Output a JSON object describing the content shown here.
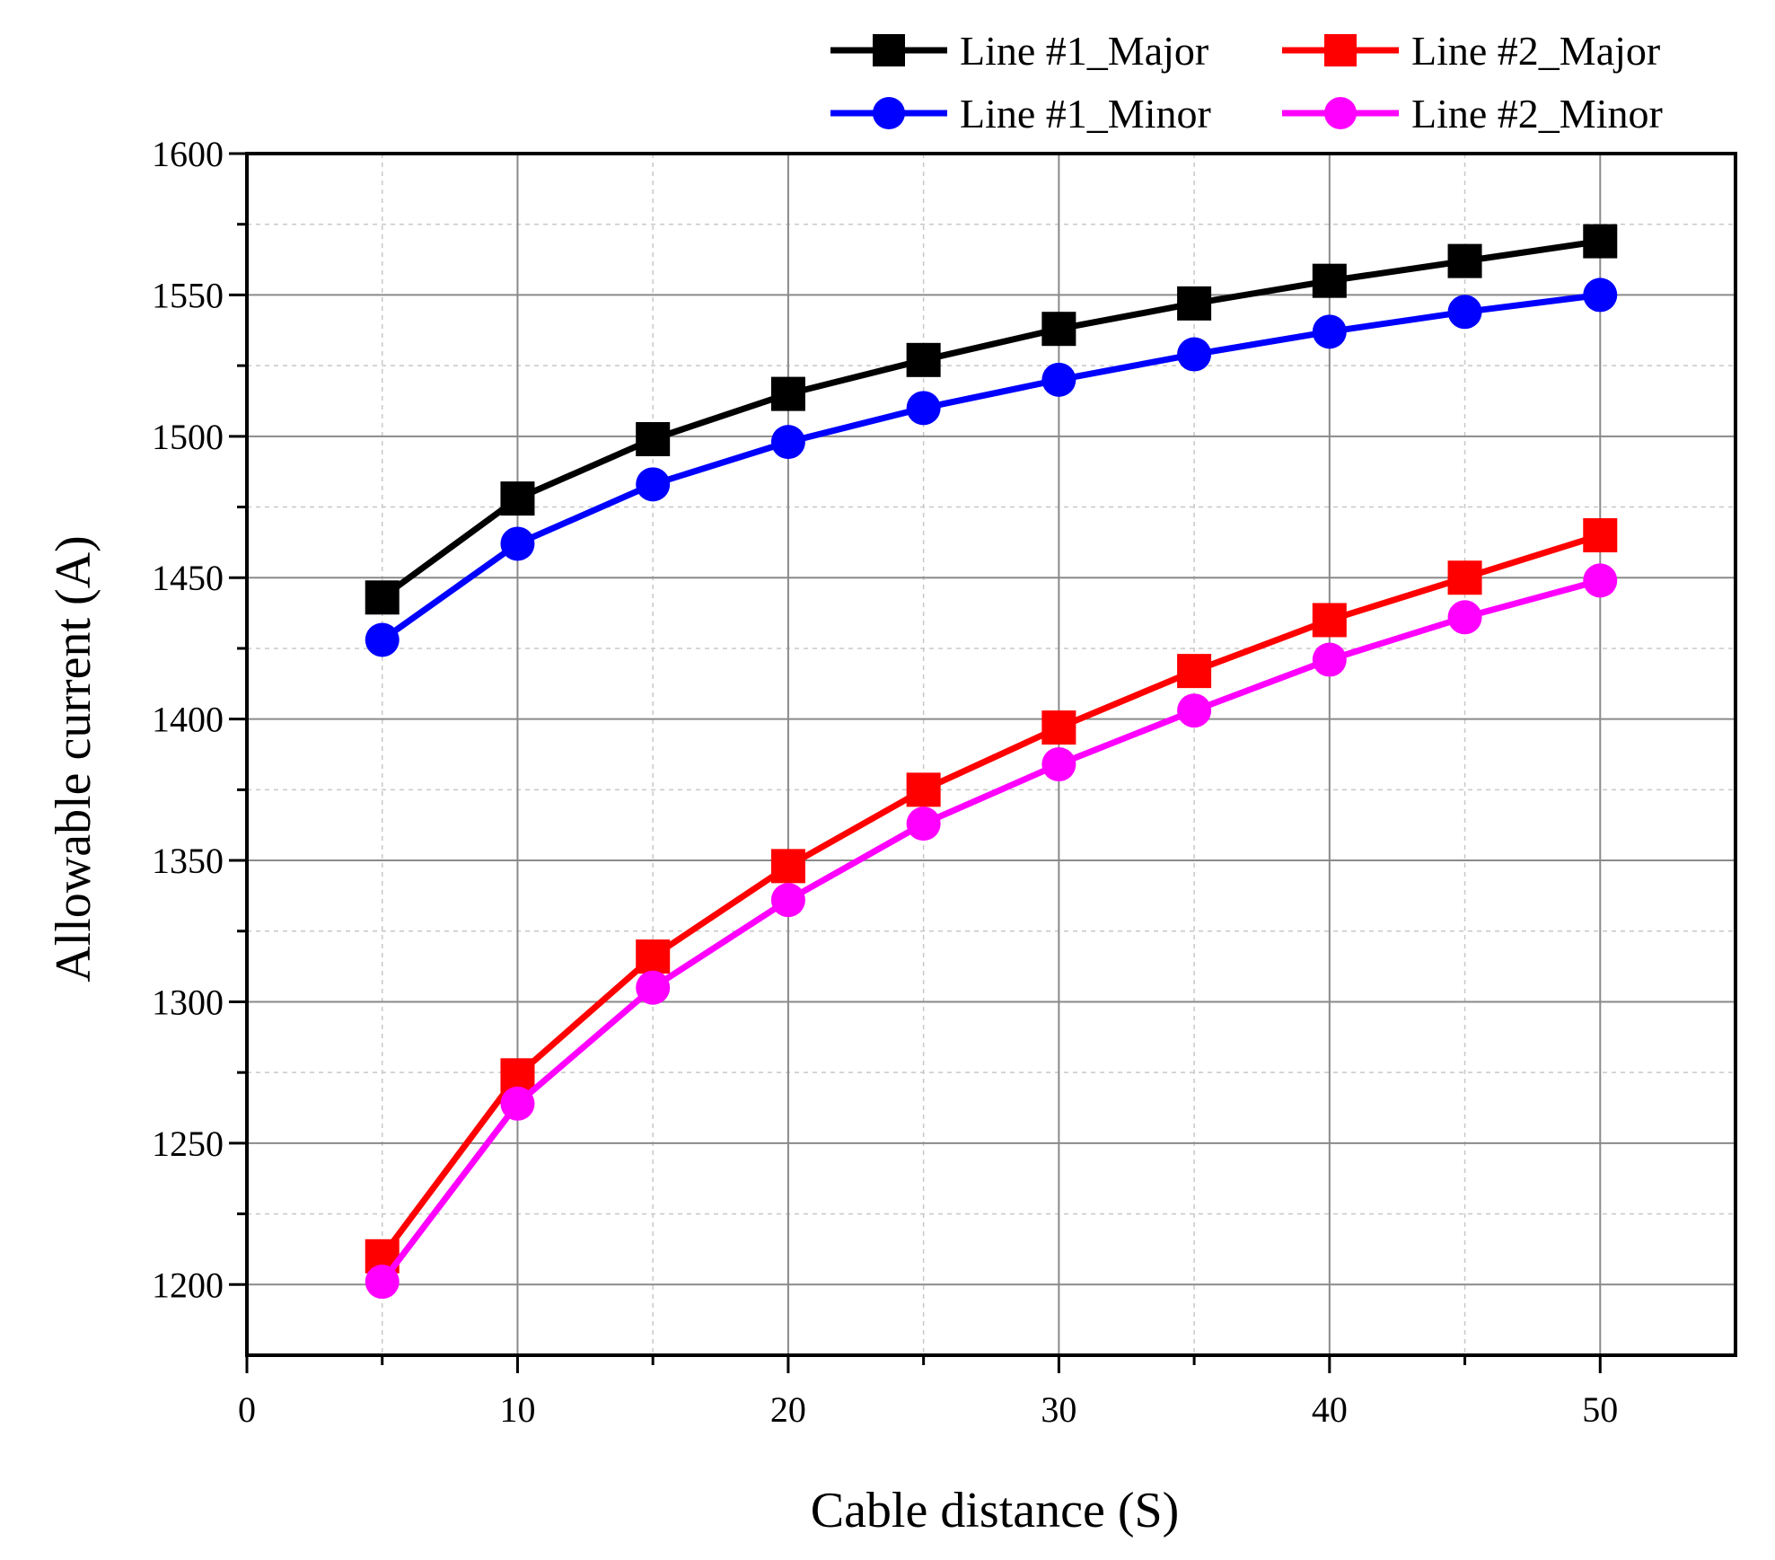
{
  "chart_data": {
    "type": "line",
    "title": "",
    "xlabel": "Cable distance (S)",
    "ylabel": "Allowable current (A)",
    "xlim": [
      0,
      55
    ],
    "ylim": [
      1175,
      1600
    ],
    "xticks": [
      0,
      10,
      20,
      30,
      40,
      50
    ],
    "yticks": [
      1200,
      1250,
      1300,
      1350,
      1400,
      1450,
      1500,
      1550,
      1600
    ],
    "grid": true,
    "legend_position": "top-right",
    "x": [
      5,
      10,
      15,
      20,
      25,
      30,
      35,
      40,
      45,
      50
    ],
    "series": [
      {
        "name": "Line #1_Major",
        "color": "#000000",
        "marker": "square",
        "values": [
          1443,
          1478,
          1499,
          1515,
          1527,
          1538,
          1547,
          1555,
          1562,
          1569
        ]
      },
      {
        "name": "Line #2_Major",
        "color": "#ff0000",
        "marker": "square",
        "values": [
          1210,
          1274,
          1316,
          1348,
          1375,
          1397,
          1417,
          1435,
          1450,
          1465
        ]
      },
      {
        "name": "Line #1_Minor",
        "color": "#0000ff",
        "marker": "circle",
        "values": [
          1428,
          1462,
          1483,
          1498,
          1510,
          1520,
          1529,
          1537,
          1544,
          1550
        ]
      },
      {
        "name": "Line #2_Minor",
        "color": "#ff00ff",
        "marker": "circle",
        "values": [
          1201,
          1264,
          1305,
          1336,
          1363,
          1384,
          1403,
          1421,
          1436,
          1449
        ]
      }
    ]
  }
}
